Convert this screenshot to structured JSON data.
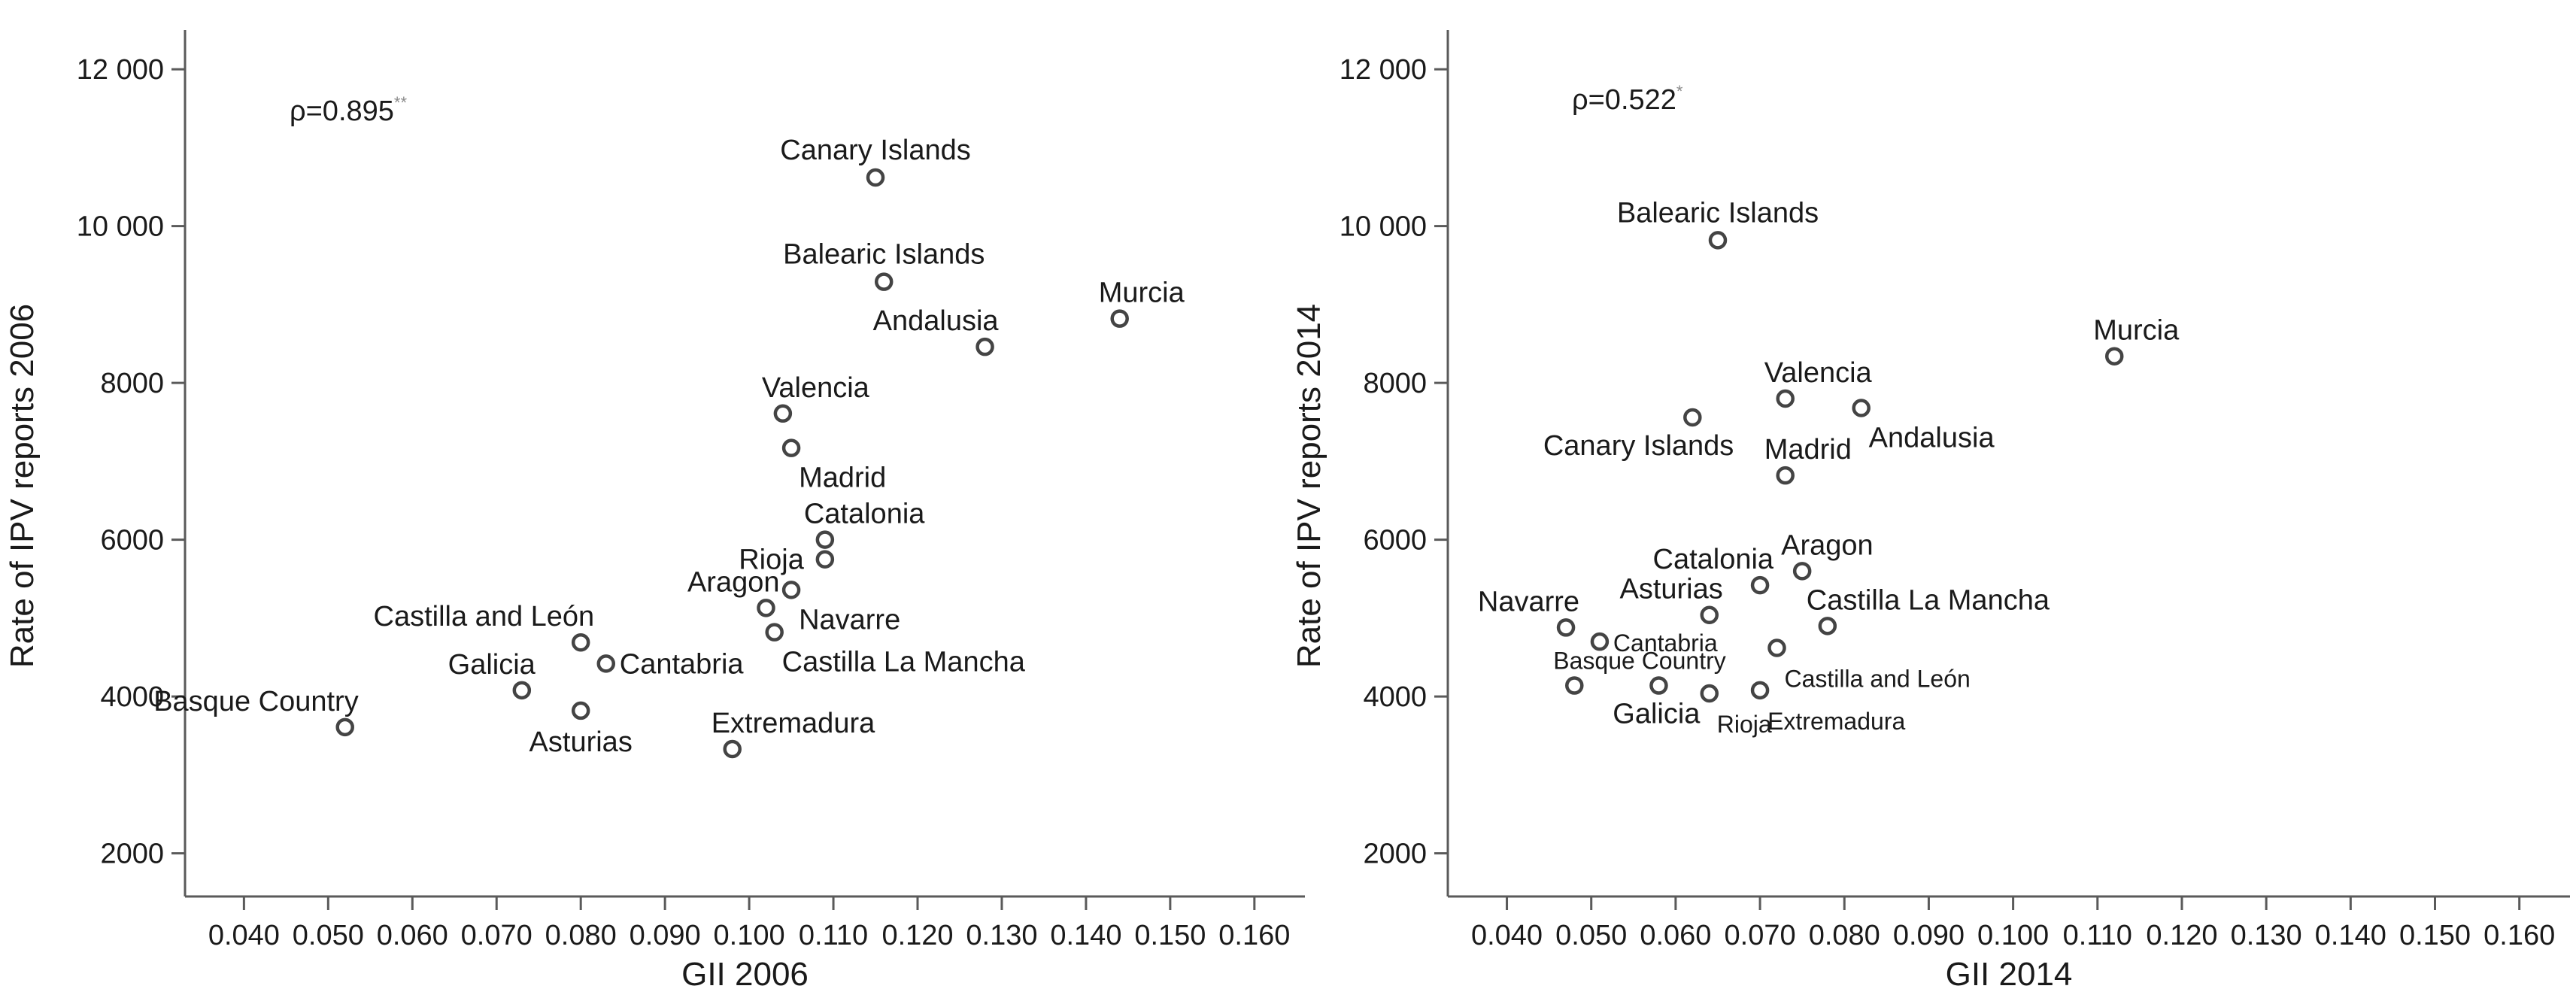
{
  "chart_data": [
    {
      "type": "scatter",
      "xlabel": "GII 2006",
      "ylabel": "Rate of IPV reports 2006",
      "xlim": [
        0.033,
        0.166
      ],
      "ylim": [
        1450,
        12500
      ],
      "x_ticks": [
        "0.040",
        "0.050",
        "0.060",
        "0.070",
        "0.080",
        "0.090",
        "0.100",
        "0.110",
        "0.120",
        "0.130",
        "0.140",
        "0.150",
        "0.160"
      ],
      "x_tick_values": [
        0.04,
        0.05,
        0.06,
        0.07,
        0.08,
        0.09,
        0.1,
        0.11,
        0.12,
        0.13,
        0.14,
        0.15,
        0.16
      ],
      "y_ticks": [
        "2000",
        "4000",
        "6000",
        "8000",
        "10 000",
        "12 000"
      ],
      "y_tick_values": [
        2000,
        4000,
        6000,
        8000,
        10000,
        12000
      ],
      "annotation": {
        "text": "ρ=0.895",
        "sup": "**"
      },
      "points": [
        {
          "label": "Canary Islands",
          "x": 0.115,
          "y": 10620,
          "pos": "above"
        },
        {
          "label": "Balearic Islands",
          "x": 0.116,
          "y": 9290,
          "pos": "above"
        },
        {
          "label": "Murcia",
          "x": 0.144,
          "y": 8820,
          "pos": "above-right"
        },
        {
          "label": "Andalusia",
          "x": 0.128,
          "y": 8460,
          "pos": "above-left"
        },
        {
          "label": "Valencia",
          "x": 0.104,
          "y": 7610,
          "pos": "above-right"
        },
        {
          "label": "Madrid",
          "x": 0.105,
          "y": 7170,
          "pos": "below-right"
        },
        {
          "label": "Catalonia",
          "x": 0.109,
          "y": 6000,
          "pos": "above-right"
        },
        {
          "label": "Rioja",
          "x": 0.109,
          "y": 5750,
          "pos": "left"
        },
        {
          "label": "Aragon",
          "x": 0.102,
          "y": 5130,
          "pos": "above-left"
        },
        {
          "label": "Navarre",
          "x": 0.105,
          "y": 5360,
          "pos": "below-right"
        },
        {
          "label": "Castilla La Mancha",
          "x": 0.103,
          "y": 4820,
          "pos": "below-right"
        },
        {
          "label": "Castilla and León",
          "x": 0.08,
          "y": 4690,
          "pos": "above-left"
        },
        {
          "label": "Cantabria",
          "x": 0.083,
          "y": 4420,
          "pos": "right"
        },
        {
          "label": "Galicia",
          "x": 0.073,
          "y": 4080,
          "pos": "above-left"
        },
        {
          "label": "Basque Country",
          "x": 0.052,
          "y": 3610,
          "pos": "above-left"
        },
        {
          "label": "Asturias",
          "x": 0.08,
          "y": 3820,
          "pos": "below"
        },
        {
          "label": "Extremadura",
          "x": 0.098,
          "y": 3330,
          "pos": "above-right"
        }
      ]
    },
    {
      "type": "scatter",
      "xlabel": "GII 2014",
      "ylabel": "Rate of IPV reports 2014",
      "xlim": [
        0.033,
        0.166
      ],
      "ylim": [
        1450,
        12500
      ],
      "x_ticks": [
        "0.040",
        "0.050",
        "0.060",
        "0.070",
        "0.080",
        "0.090",
        "0.100",
        "0.110",
        "0.120",
        "0.130",
        "0.140",
        "0.150",
        "0.160"
      ],
      "x_tick_values": [
        0.04,
        0.05,
        0.06,
        0.07,
        0.08,
        0.09,
        0.1,
        0.11,
        0.12,
        0.13,
        0.14,
        0.15,
        0.16
      ],
      "y_ticks": [
        "2000",
        "4000",
        "6000",
        "8000",
        "10 000",
        "12 000"
      ],
      "y_tick_values": [
        2000,
        4000,
        6000,
        8000,
        10000,
        12000
      ],
      "annotation": {
        "text": "ρ=0.522",
        "sup": "*"
      },
      "points": [
        {
          "label": "Balearic Islands",
          "x": 0.065,
          "y": 9820,
          "pos": "above"
        },
        {
          "label": "Murcia",
          "x": 0.112,
          "y": 8340,
          "pos": "above-right"
        },
        {
          "label": "Valencia",
          "x": 0.073,
          "y": 7800,
          "pos": "above-right"
        },
        {
          "label": "Andalusia",
          "x": 0.082,
          "y": 7680,
          "pos": "below-right"
        },
        {
          "label": "Canary Islands",
          "x": 0.062,
          "y": 7560,
          "pos": "below-left"
        },
        {
          "label": "Madrid",
          "x": 0.073,
          "y": 6820,
          "pos": "above-right"
        },
        {
          "label": "Aragon",
          "x": 0.075,
          "y": 5600,
          "pos": "above-right"
        },
        {
          "label": "Catalonia",
          "x": 0.07,
          "y": 5420,
          "pos": "above-left"
        },
        {
          "label": "Asturias",
          "x": 0.064,
          "y": 5040,
          "pos": "above-left"
        },
        {
          "label": "Castilla La Mancha",
          "x": 0.078,
          "y": 4900,
          "pos": "above-right"
        },
        {
          "label": "Navarre",
          "x": 0.047,
          "y": 4880,
          "pos": "above-left"
        },
        {
          "label": "Cantabria",
          "x": 0.051,
          "y": 4700,
          "pos": "right",
          "small": true
        },
        {
          "label": "Castilla and León",
          "x": 0.072,
          "y": 4620,
          "pos": "below-right",
          "small": true
        },
        {
          "label": "Basque Country",
          "x": 0.048,
          "y": 4140,
          "pos": "above-right",
          "small": true
        },
        {
          "label": "Galicia",
          "x": 0.058,
          "y": 4140,
          "pos": "below-left"
        },
        {
          "label": "Rioja",
          "x": 0.064,
          "y": 4040,
          "pos": "below-right",
          "small": true
        },
        {
          "label": "Extremadura",
          "x": 0.07,
          "y": 4080,
          "pos": "below-right",
          "small": true
        }
      ]
    }
  ]
}
